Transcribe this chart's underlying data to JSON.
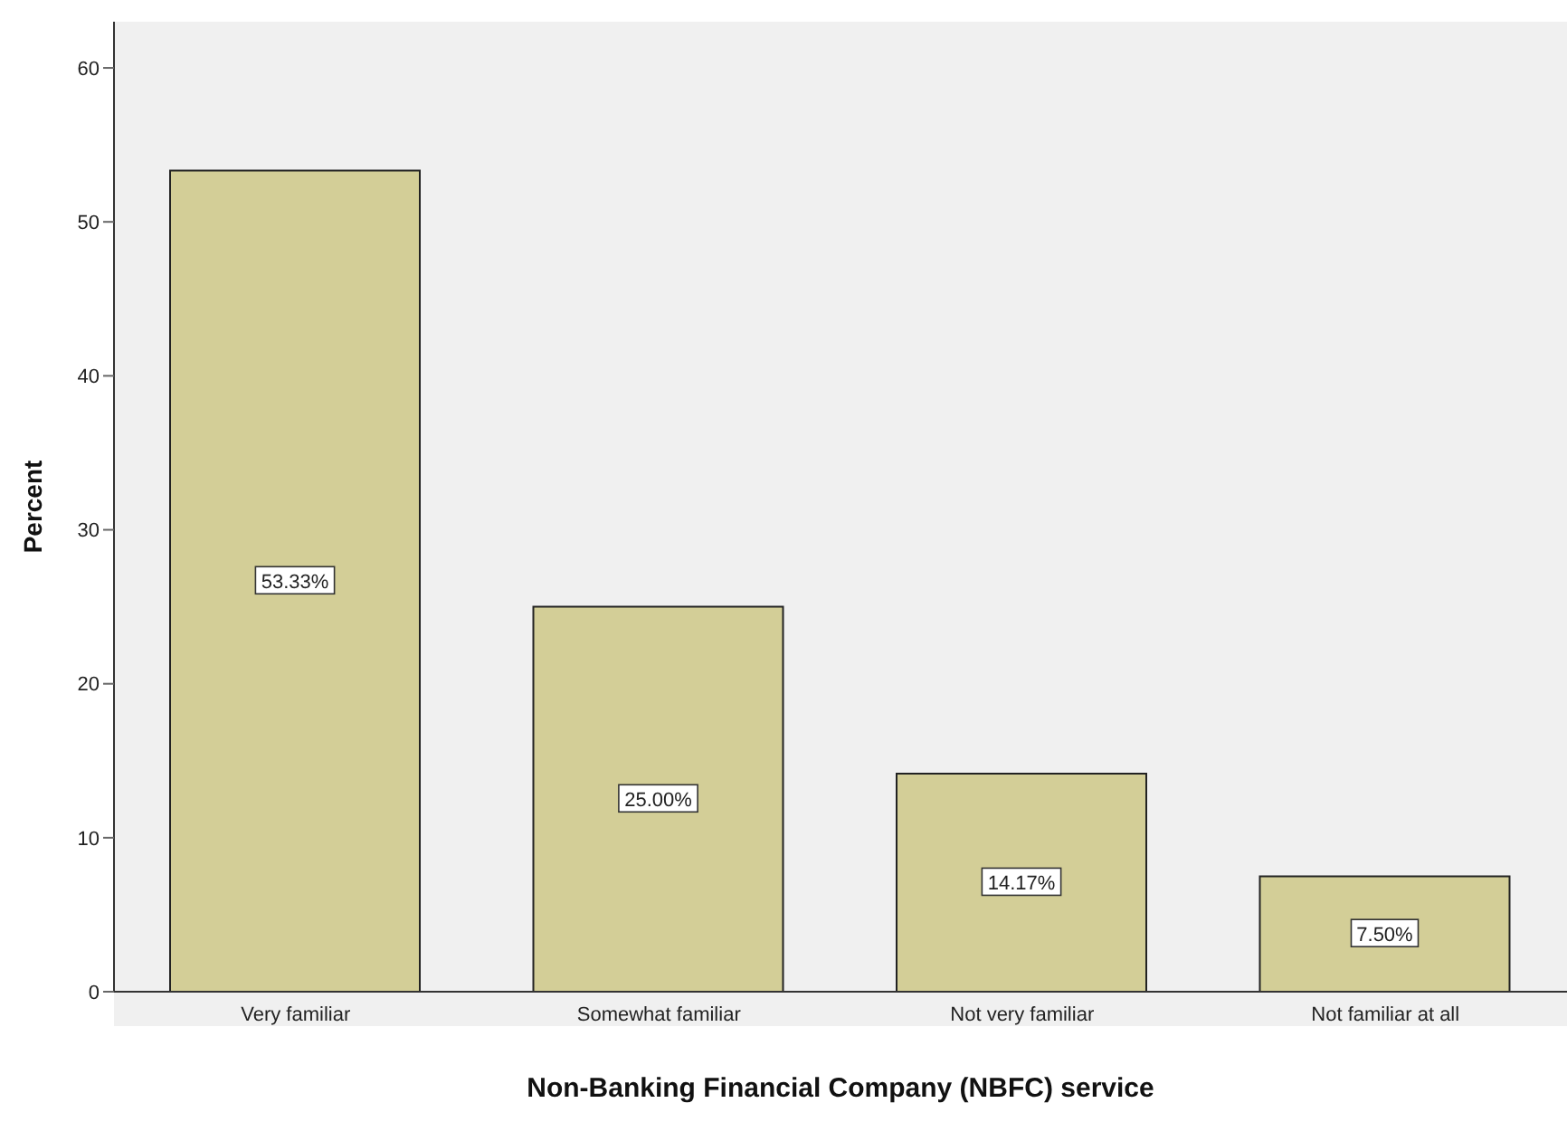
{
  "chart_data": {
    "type": "bar",
    "xlabel": "Non-Banking Financial Company (NBFC) service",
    "ylabel": "Percent",
    "categories": [
      "Very familiar",
      "Somewhat familiar",
      "Not very familiar",
      "Not familiar at all"
    ],
    "values": [
      53.33,
      25.0,
      14.17,
      7.5
    ],
    "value_labels": [
      "53.33%",
      "25.00%",
      "14.17%",
      "7.50%"
    ],
    "color": "#d3ce97",
    "ylim": [
      0,
      63
    ],
    "yticks": [
      0,
      10,
      20,
      30,
      40,
      50,
      60
    ],
    "grid": false,
    "legend": false
  }
}
